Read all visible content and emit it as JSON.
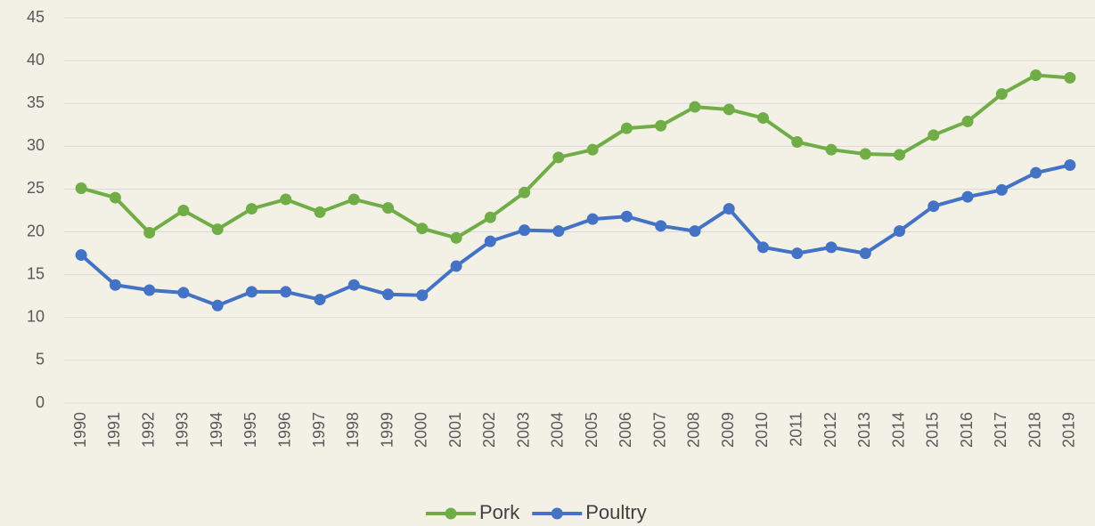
{
  "chart_data": {
    "type": "line",
    "categories": [
      "1990",
      "1991",
      "1992",
      "1993",
      "1994",
      "1995",
      "1996",
      "1997",
      "1998",
      "1999",
      "2000",
      "2001",
      "2002",
      "2003",
      "2004",
      "2005",
      "2006",
      "2007",
      "2008",
      "2009",
      "2010",
      "2011",
      "2012",
      "2013",
      "2014",
      "2015",
      "2016",
      "2017",
      "2018",
      "2019"
    ],
    "series": [
      {
        "name": "Pork",
        "color": "#70ad47",
        "values": [
          25.1,
          24.0,
          19.9,
          22.5,
          20.3,
          22.7,
          23.8,
          22.3,
          23.8,
          22.8,
          20.4,
          19.3,
          21.7,
          24.6,
          28.7,
          29.6,
          32.1,
          32.4,
          34.6,
          34.3,
          33.3,
          30.5,
          29.6,
          29.1,
          29.0,
          31.3,
          32.9,
          36.1,
          38.3,
          38.0
        ]
      },
      {
        "name": "Poultry",
        "color": "#4472c4",
        "values": [
          17.3,
          13.8,
          13.2,
          12.9,
          11.4,
          13.0,
          13.0,
          12.1,
          13.8,
          12.7,
          12.6,
          16.0,
          18.9,
          20.2,
          20.1,
          21.5,
          21.8,
          20.7,
          20.1,
          22.7,
          18.2,
          17.5,
          18.2,
          17.5,
          20.1,
          23.0,
          24.1,
          24.9,
          26.9,
          27.8
        ]
      }
    ],
    "ylim": [
      0,
      45
    ],
    "yticks": [
      0,
      5,
      10,
      15,
      20,
      25,
      30,
      35,
      40,
      45
    ],
    "grid": true,
    "legend": "bottom"
  }
}
